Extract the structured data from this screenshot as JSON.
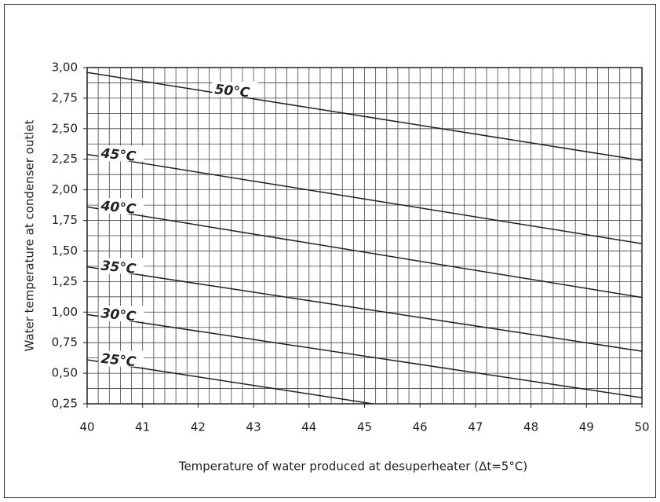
{
  "chart_data": {
    "type": "line",
    "xlabel": "Temperature of water produced at desuperheater (Δt=5°C)",
    "ylabel": "Water temperature at condenser outlet",
    "xlim": [
      40,
      50
    ],
    "ylim": [
      0.25,
      3.0
    ],
    "xticks": [
      40,
      41,
      42,
      43,
      44,
      45,
      46,
      47,
      48,
      49,
      50
    ],
    "yticks": [
      {
        "value": 0.25,
        "label": "0,25"
      },
      {
        "value": 0.5,
        "label": "0,50"
      },
      {
        "value": 0.75,
        "label": "0,75"
      },
      {
        "value": 1.0,
        "label": "1,00"
      },
      {
        "value": 1.25,
        "label": "1,25"
      },
      {
        "value": 1.5,
        "label": "1,50"
      },
      {
        "value": 1.75,
        "label": "1,75"
      },
      {
        "value": 2.0,
        "label": "2,00"
      },
      {
        "value": 2.25,
        "label": "2,25"
      },
      {
        "value": 2.5,
        "label": "2,50"
      },
      {
        "value": 2.75,
        "label": "2,75"
      },
      {
        "value": 3.0,
        "label": "3,00"
      }
    ],
    "grid": true,
    "minor_xstep": 0.2,
    "minor_ystep": 0.125,
    "series": [
      {
        "name": "50°C",
        "color": "#222222",
        "x": [
          40,
          50
        ],
        "values": [
          2.96,
          2.24
        ]
      },
      {
        "name": "45°C",
        "color": "#222222",
        "x": [
          40,
          50
        ],
        "values": [
          2.29,
          1.56
        ]
      },
      {
        "name": "40°C",
        "color": "#222222",
        "x": [
          40,
          50
        ],
        "values": [
          1.86,
          1.12
        ]
      },
      {
        "name": "35°C",
        "color": "#222222",
        "x": [
          40,
          50
        ],
        "values": [
          1.37,
          0.68
        ]
      },
      {
        "name": "30°C",
        "color": "#222222",
        "x": [
          40,
          50
        ],
        "values": [
          0.98,
          0.3
        ]
      },
      {
        "name": "25°C",
        "color": "#222222",
        "x": [
          40,
          45.15
        ],
        "values": [
          0.61,
          0.25
        ]
      }
    ]
  }
}
